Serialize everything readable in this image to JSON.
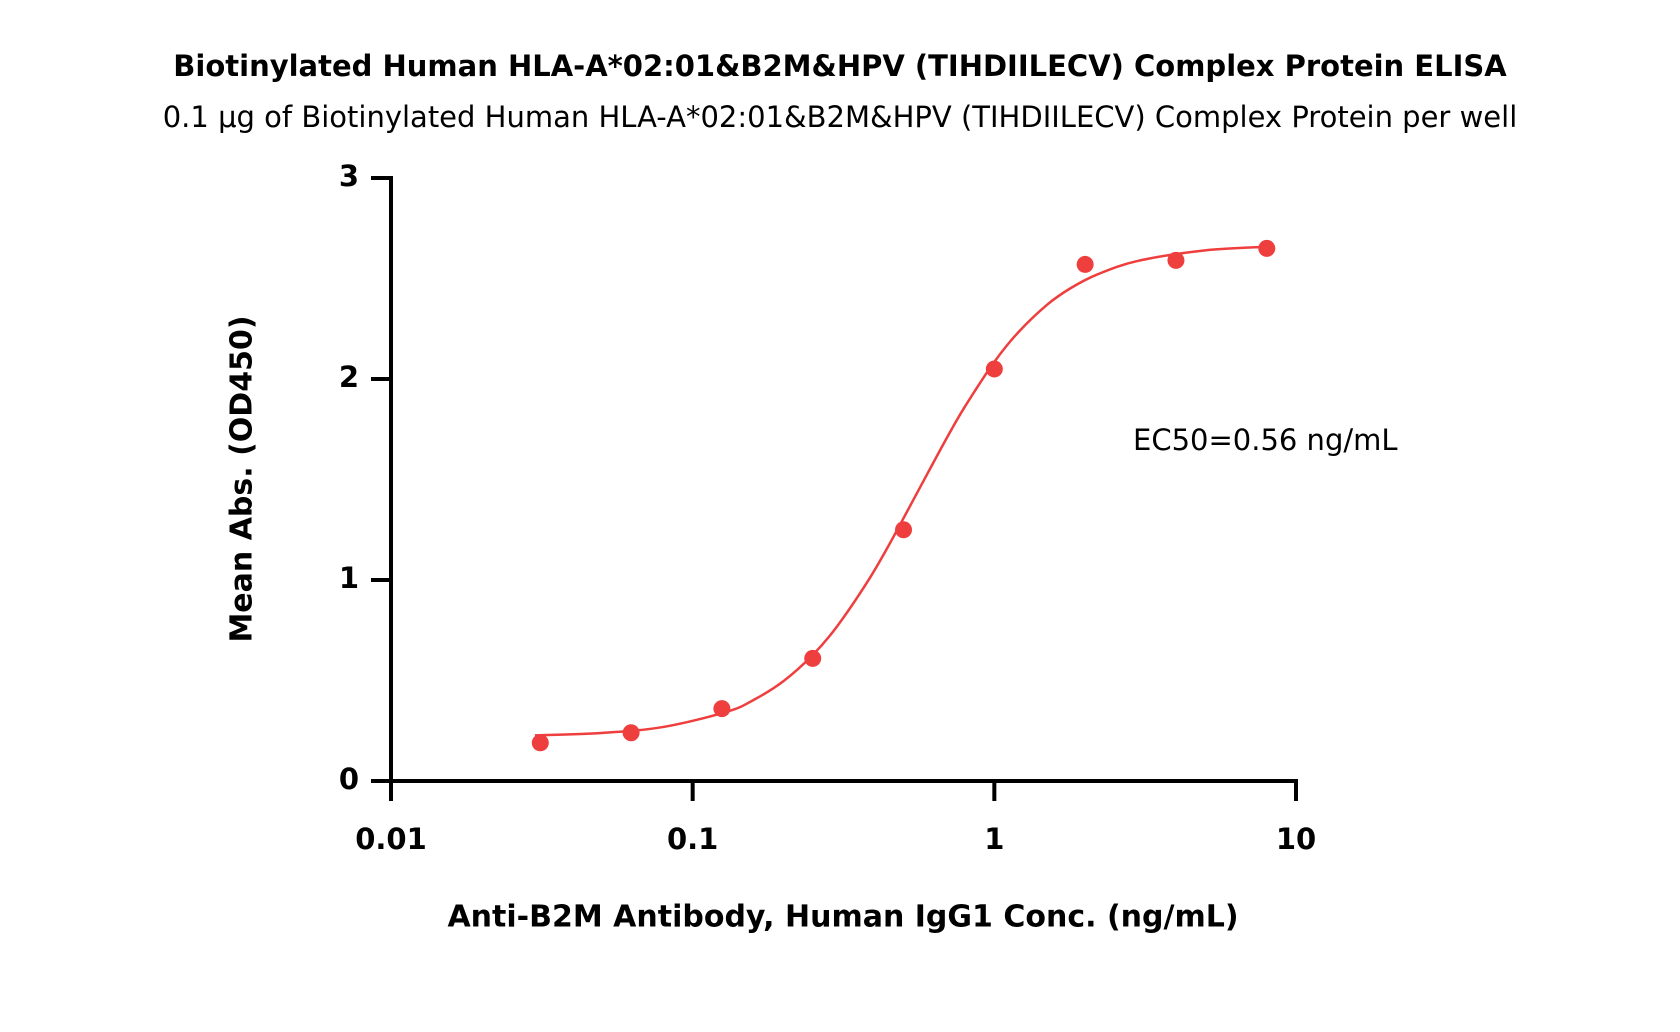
{
  "chart_data": {
    "type": "scatter",
    "title": "Biotinylated Human HLA-A*02:01&B2M&HPV (TIHDIILECV) Complex Protein ELISA",
    "subtitle": "0.1 μg of Biotinylated Human HLA-A*02:01&B2M&HPV (TIHDIILECV) Complex Protein per well",
    "x_label": "Anti-B2M Antibody, Human IgG1 Conc. (ng/mL)",
    "y_label": "Mean Abs. (OD450)",
    "annotation": "EC50=0.56 ng/mL",
    "xscale": "log",
    "xlim": [
      0.01,
      10
    ],
    "xticks": [
      0.01,
      0.1,
      1,
      10
    ],
    "ylim": [
      0,
      3
    ],
    "yticks": [
      0,
      1,
      2,
      3
    ],
    "points": {
      "color": "#ee3e3e",
      "x": [
        0.03125,
        0.0625,
        0.125,
        0.25,
        0.5,
        1,
        2,
        4,
        8
      ],
      "values": [
        0.19,
        0.24,
        0.36,
        0.61,
        1.25,
        2.05,
        2.57,
        2.59,
        2.65
      ]
    },
    "fit": {
      "color": "#ee3e3e",
      "x": [
        0.03,
        0.05,
        0.08,
        0.13,
        0.16,
        0.2,
        0.25,
        0.3,
        0.38,
        0.45,
        0.6,
        0.7,
        0.8,
        1,
        1.2,
        1.5,
        1.8,
        2.2,
        3,
        5,
        8
      ],
      "values": [
        0.227,
        0.239,
        0.269,
        0.345,
        0.405,
        0.497,
        0.627,
        0.766,
        0.992,
        1.181,
        1.529,
        1.714,
        1.864,
        2.085,
        2.232,
        2.371,
        2.454,
        2.521,
        2.588,
        2.64,
        2.658
      ]
    }
  }
}
